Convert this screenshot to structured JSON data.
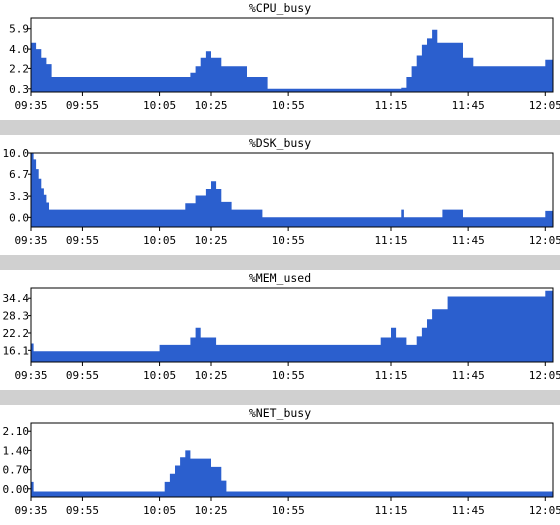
{
  "colors": {
    "fill": "#2b5fce",
    "axis": "#000000",
    "separator": "#d0d0d0",
    "background": "#ffffff"
  },
  "chart_data": [
    {
      "type": "area",
      "title": "%CPU_busy",
      "x_tick_labels": [
        "09:35",
        "09:55",
        "10:05",
        "10:25",
        "10:55",
        "11:15",
        "11:45",
        "12:05"
      ],
      "x_ticks": [
        0,
        20,
        50,
        70,
        100,
        140,
        170,
        200
      ],
      "y_ticks": [
        0.3,
        2.2,
        4.0,
        5.9
      ],
      "y_tick_labels": [
        "0.3",
        "2.2",
        "4.0",
        "5.9"
      ],
      "ylim": [
        0,
        6.9
      ],
      "xlim": [
        0,
        203
      ],
      "values": [
        [
          0,
          4.6
        ],
        [
          2,
          4.0
        ],
        [
          4,
          3.2
        ],
        [
          6,
          2.6
        ],
        [
          8,
          1.4
        ],
        [
          62,
          1.8
        ],
        [
          64,
          2.4
        ],
        [
          66,
          3.2
        ],
        [
          68,
          3.8
        ],
        [
          70,
          3.2
        ],
        [
          74,
          2.4
        ],
        [
          84,
          1.4
        ],
        [
          92,
          0.3
        ],
        [
          144,
          0.4
        ],
        [
          146,
          1.4
        ],
        [
          148,
          2.4
        ],
        [
          150,
          3.4
        ],
        [
          152,
          4.4
        ],
        [
          154,
          5.0
        ],
        [
          156,
          5.8
        ],
        [
          158,
          4.6
        ],
        [
          168,
          3.2
        ],
        [
          172,
          2.4
        ],
        [
          200,
          3.0
        ],
        [
          203,
          3.0
        ]
      ]
    },
    {
      "type": "area",
      "title": "%DSK_busy",
      "x_tick_labels": [
        "09:35",
        "09:55",
        "10:05",
        "10:25",
        "10:55",
        "11:15",
        "11:45",
        "12:05"
      ],
      "x_ticks": [
        0,
        20,
        50,
        70,
        100,
        140,
        170,
        200
      ],
      "y_ticks": [
        0.0,
        3.3,
        6.7,
        10.0
      ],
      "y_tick_labels": [
        "0.0",
        "3.3",
        "6.7",
        "10.0"
      ],
      "ylim": [
        -1.5,
        10.0
      ],
      "xlim": [
        0,
        203
      ],
      "values": [
        [
          0,
          10.0
        ],
        [
          1,
          9.0
        ],
        [
          2,
          7.5
        ],
        [
          3,
          6.0
        ],
        [
          4,
          4.5
        ],
        [
          5,
          3.5
        ],
        [
          6,
          2.3
        ],
        [
          7,
          1.2
        ],
        [
          60,
          2.2
        ],
        [
          64,
          3.4
        ],
        [
          68,
          4.4
        ],
        [
          70,
          5.6
        ],
        [
          72,
          4.4
        ],
        [
          74,
          2.4
        ],
        [
          78,
          1.2
        ],
        [
          90,
          0.0
        ],
        [
          144,
          1.2
        ],
        [
          145,
          0.0
        ],
        [
          160,
          1.2
        ],
        [
          168,
          0.0
        ],
        [
          200,
          1.0
        ],
        [
          203,
          1.0
        ]
      ]
    },
    {
      "type": "area",
      "title": "%MEM_used",
      "x_tick_labels": [
        "09:35",
        "09:55",
        "10:05",
        "10:25",
        "10:55",
        "11:15",
        "11:45",
        "12:05"
      ],
      "x_ticks": [
        0,
        20,
        50,
        70,
        100,
        140,
        170,
        200
      ],
      "y_ticks": [
        16.1,
        22.2,
        28.3,
        34.4
      ],
      "y_tick_labels": [
        "16.1",
        "22.2",
        "28.3",
        "34.4"
      ],
      "ylim": [
        12.0,
        38.0
      ],
      "xlim": [
        0,
        203
      ],
      "values": [
        [
          0,
          18.5
        ],
        [
          1,
          15.8
        ],
        [
          50,
          18.0
        ],
        [
          62,
          20.6
        ],
        [
          64,
          24.0
        ],
        [
          66,
          20.6
        ],
        [
          72,
          18.0
        ],
        [
          136,
          20.6
        ],
        [
          140,
          24.0
        ],
        [
          142,
          20.6
        ],
        [
          146,
          18.0
        ],
        [
          150,
          21.0
        ],
        [
          152,
          24.0
        ],
        [
          154,
          27.0
        ],
        [
          156,
          30.5
        ],
        [
          162,
          35.0
        ],
        [
          200,
          37.0
        ],
        [
          203,
          37.0
        ]
      ]
    },
    {
      "type": "area",
      "title": "%NET_busy",
      "x_tick_labels": [
        "09:35",
        "09:55",
        "10:05",
        "10:25",
        "10:55",
        "11:15",
        "11:45",
        "12:05"
      ],
      "x_ticks": [
        0,
        20,
        50,
        70,
        100,
        140,
        170,
        200
      ],
      "y_ticks": [
        0.0,
        0.7,
        1.4,
        2.1
      ],
      "y_tick_labels": [
        "0.00",
        "0.70",
        "1.40",
        "2.10"
      ],
      "ylim": [
        -0.3,
        2.4
      ],
      "xlim": [
        0,
        203
      ],
      "values": [
        [
          0,
          0.25
        ],
        [
          1,
          -0.1
        ],
        [
          52,
          0.25
        ],
        [
          54,
          0.55
        ],
        [
          56,
          0.85
        ],
        [
          58,
          1.15
        ],
        [
          60,
          1.4
        ],
        [
          62,
          1.1
        ],
        [
          70,
          0.8
        ],
        [
          74,
          0.3
        ],
        [
          76,
          -0.1
        ],
        [
          203,
          -0.1
        ]
      ]
    }
  ]
}
